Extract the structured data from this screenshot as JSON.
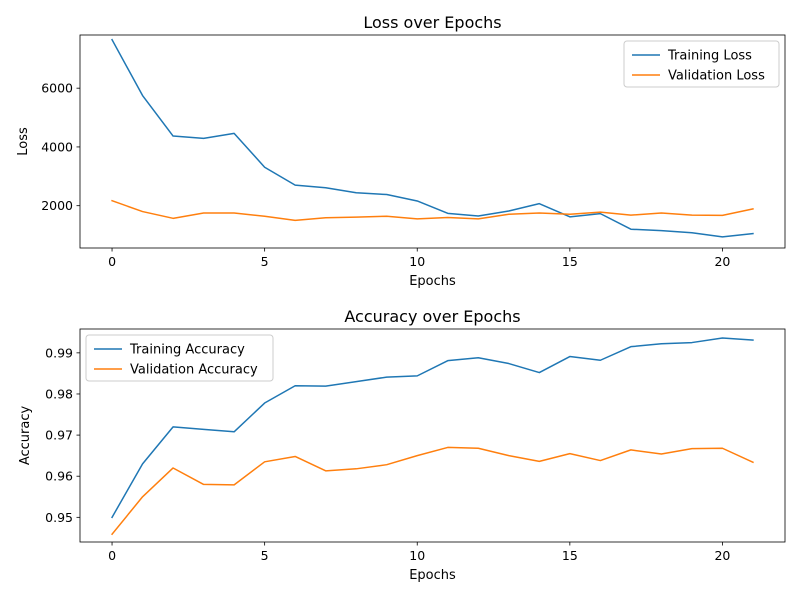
{
  "chart_data": [
    {
      "type": "line",
      "title": "Loss over Epochs",
      "xlabel": "Epochs",
      "ylabel": "Loss",
      "xlim": [
        -1.05,
        22.05
      ],
      "ylim": [
        560,
        7810
      ],
      "xticks": [
        0,
        5,
        10,
        15,
        20
      ],
      "yticks": [
        2000,
        4000,
        6000
      ],
      "grid": false,
      "legend": "upper right",
      "x": [
        0,
        1,
        2,
        3,
        4,
        5,
        6,
        7,
        8,
        9,
        10,
        11,
        12,
        13,
        14,
        15,
        16,
        17,
        18,
        19,
        20,
        21
      ],
      "series": [
        {
          "name": "Training Loss",
          "color": "#1f77b4",
          "values": [
            7650,
            5750,
            4370,
            4290,
            4460,
            3310,
            2700,
            2610,
            2440,
            2380,
            2160,
            1740,
            1650,
            1820,
            2070,
            1620,
            1730,
            1200,
            1150,
            1080,
            940,
            1050
          ]
        },
        {
          "name": "Validation Loss",
          "color": "#ff7f0e",
          "values": [
            2170,
            1800,
            1570,
            1750,
            1750,
            1640,
            1500,
            1590,
            1610,
            1640,
            1550,
            1600,
            1550,
            1710,
            1750,
            1710,
            1780,
            1680,
            1750,
            1680,
            1670,
            1890
          ]
        }
      ]
    },
    {
      "type": "line",
      "title": "Accuracy over Epochs",
      "xlabel": "Epochs",
      "ylabel": "Accuracy",
      "xlim": [
        -1.05,
        22.05
      ],
      "ylim": [
        0.944,
        0.9958
      ],
      "xticks": [
        0,
        5,
        10,
        15,
        20
      ],
      "yticks": [
        0.95,
        0.96,
        0.97,
        0.98,
        0.99
      ],
      "grid": false,
      "legend": "upper left",
      "x": [
        0,
        1,
        2,
        3,
        4,
        5,
        6,
        7,
        8,
        9,
        10,
        11,
        12,
        13,
        14,
        15,
        16,
        17,
        18,
        19,
        20,
        21
      ],
      "series": [
        {
          "name": "Training Accuracy",
          "color": "#1f77b4",
          "values": [
            0.95,
            0.963,
            0.972,
            0.9714,
            0.9708,
            0.9778,
            0.982,
            0.9819,
            0.983,
            0.9841,
            0.9844,
            0.9881,
            0.9888,
            0.9874,
            0.9852,
            0.9891,
            0.9882,
            0.9915,
            0.9922,
            0.9925,
            0.9936,
            0.9931
          ]
        },
        {
          "name": "Validation Accuracy",
          "color": "#ff7f0e",
          "values": [
            0.9459,
            0.955,
            0.962,
            0.958,
            0.9579,
            0.9635,
            0.9648,
            0.9613,
            0.9618,
            0.9628,
            0.965,
            0.967,
            0.9668,
            0.965,
            0.9636,
            0.9655,
            0.9638,
            0.9664,
            0.9654,
            0.9667,
            0.9668,
            0.9634
          ]
        }
      ]
    }
  ]
}
